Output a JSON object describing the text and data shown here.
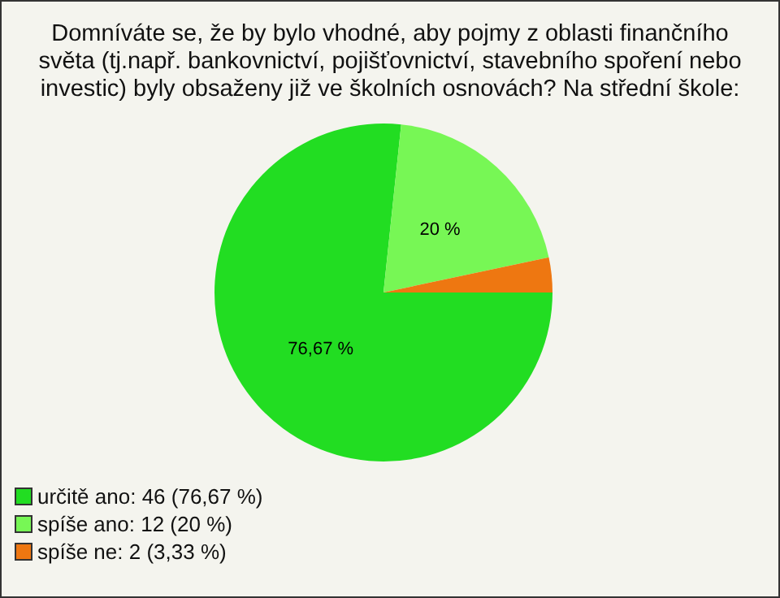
{
  "chart_data": {
    "type": "pie",
    "title": "Domníváte se, že by bylo vhodné, aby pojmy z oblasti finančního světa (tj.např. bankovnictví, pojišťovnictví, stavebního spoření nebo investic) byly obsaženy již ve školních osnovách? Na střední škole:",
    "categories": [
      "určitě ano: 46 (76,67 %)",
      "spíše ano: 12 (20 %)",
      "spíše ne: 2 (3,33 %)"
    ],
    "values": [
      76.67,
      20,
      3.33
    ],
    "value_labels": [
      "76,67 %",
      "20 %",
      null
    ],
    "colors": [
      "#22dd22",
      "#77f755",
      "#ee7711"
    ],
    "legend": "bottom left"
  }
}
